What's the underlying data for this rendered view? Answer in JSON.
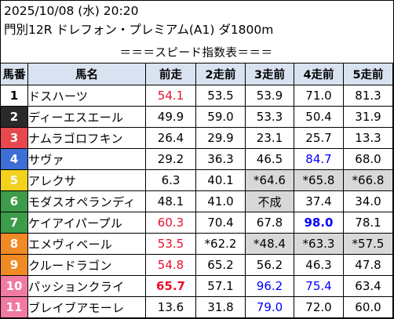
{
  "header": {
    "date_line": "2025/10/08 (水) 20:20",
    "race_line": "門別12R ドレフォン・プレミアム(A1) ダ1800m",
    "section_title": "＝＝＝スピード指数表＝＝＝"
  },
  "columns": [
    "馬番",
    "馬名",
    "前走",
    "2走前",
    "3走前",
    "4走前",
    "5走前"
  ],
  "horses": [
    {
      "num": "1",
      "frame_color": "#ffffff",
      "num_color": "#000000",
      "name": "ドスハーツ",
      "cells": [
        {
          "v": "54.1",
          "c": "red"
        },
        {
          "v": "53.5"
        },
        {
          "v": "53.9"
        },
        {
          "v": "71.0"
        },
        {
          "v": "81.3"
        }
      ]
    },
    {
      "num": "2",
      "frame_color": "#2a2a2a",
      "num_color": "#ffffff",
      "name": "ディーエスエール",
      "cells": [
        {
          "v": "49.9"
        },
        {
          "v": "59.0"
        },
        {
          "v": "53.3"
        },
        {
          "v": "50.4"
        },
        {
          "v": "31.9"
        }
      ]
    },
    {
      "num": "3",
      "frame_color": "#e8474d",
      "num_color": "#ffffff",
      "name": "ナムラゴロフキン",
      "cells": [
        {
          "v": "26.4"
        },
        {
          "v": "29.9"
        },
        {
          "v": "23.1"
        },
        {
          "v": "25.7"
        },
        {
          "v": "13.3"
        }
      ]
    },
    {
      "num": "4",
      "frame_color": "#3d6fd6",
      "num_color": "#ffffff",
      "name": "サヴァ",
      "cells": [
        {
          "v": "29.2"
        },
        {
          "v": "36.3"
        },
        {
          "v": "46.5"
        },
        {
          "v": "84.7",
          "c": "blue"
        },
        {
          "v": "68.0"
        }
      ]
    },
    {
      "num": "5",
      "frame_color": "#f2d21c",
      "num_color": "#ffffff",
      "name": "アレクサ",
      "cells": [
        {
          "v": "6.3"
        },
        {
          "v": "40.1"
        },
        {
          "v": "*64.6",
          "hl": true
        },
        {
          "v": "*65.8",
          "hl": true
        },
        {
          "v": "*66.8",
          "hl": true
        }
      ]
    },
    {
      "num": "6",
      "frame_color": "#3d9c4a",
      "num_color": "#ffffff",
      "name": "モダスオペランディ",
      "cells": [
        {
          "v": "48.1"
        },
        {
          "v": "41.0"
        },
        {
          "v": "不成",
          "hl": true
        },
        {
          "v": "37.4"
        },
        {
          "v": "34.0"
        }
      ]
    },
    {
      "num": "7",
      "frame_color": "#3d9c4a",
      "num_color": "#ffffff",
      "name": "ケイアイパープル",
      "cells": [
        {
          "v": "60.3",
          "c": "red"
        },
        {
          "v": "70.4"
        },
        {
          "v": "67.8"
        },
        {
          "v": "98.0",
          "c": "blue",
          "b": true
        },
        {
          "v": "78.1"
        }
      ]
    },
    {
      "num": "8",
      "frame_color": "#f08a24",
      "num_color": "#ffffff",
      "name": "エメヴィベール",
      "cells": [
        {
          "v": "53.5",
          "c": "red"
        },
        {
          "v": "*62.2"
        },
        {
          "v": "*48.4",
          "hl": true
        },
        {
          "v": "*63.3",
          "hl": true
        },
        {
          "v": "*57.5",
          "hl": true
        }
      ]
    },
    {
      "num": "9",
      "frame_color": "#f08a24",
      "num_color": "#ffffff",
      "name": "クルードラゴン",
      "cells": [
        {
          "v": "54.8",
          "c": "red"
        },
        {
          "v": "65.2"
        },
        {
          "v": "56.2"
        },
        {
          "v": "46.3"
        },
        {
          "v": "47.8"
        }
      ]
    },
    {
      "num": "10",
      "frame_color": "#f07aa0",
      "num_color": "#ffffff",
      "name": "パッションクライ",
      "cells": [
        {
          "v": "65.7",
          "c": "red",
          "b": true
        },
        {
          "v": "57.1"
        },
        {
          "v": "96.2",
          "c": "blue"
        },
        {
          "v": "75.4",
          "c": "blue"
        },
        {
          "v": "63.4"
        }
      ]
    },
    {
      "num": "11",
      "frame_color": "#f07aa0",
      "num_color": "#ffffff",
      "name": "ブレイブアモーレ",
      "cells": [
        {
          "v": "13.6"
        },
        {
          "v": "31.8"
        },
        {
          "v": "79.0",
          "c": "blue"
        },
        {
          "v": "72.0"
        },
        {
          "v": "60.0"
        }
      ]
    }
  ]
}
